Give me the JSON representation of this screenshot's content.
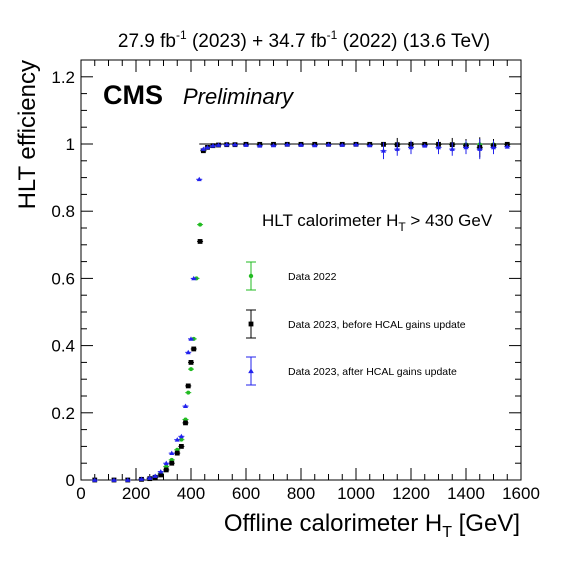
{
  "chart_data": {
    "type": "scatter",
    "lumi_label": {
      "part1": "27.9 fb",
      "sup1": "-1",
      "part2": " (2023) + 34.7 fb",
      "sup2": "-1",
      "part3": " (2022) (13.6 TeV)"
    },
    "cms_label": "CMS",
    "preliminary_label": "Preliminary",
    "cut_label": {
      "pre": "HLT calorimeter H",
      "sub": "T",
      "post": " > 430 GeV"
    },
    "xlabel": {
      "pre": "Offline calorimeter H",
      "sub": "T",
      "post": " [GeV]"
    },
    "ylabel": "HLT efficiency",
    "xlim": [
      0,
      1600
    ],
    "ylim": [
      0,
      1.25
    ],
    "x_ticks": [
      0,
      200,
      400,
      600,
      800,
      1000,
      1200,
      1400,
      1600
    ],
    "x_tick_labels": [
      "0",
      "200",
      "400",
      "600",
      "800",
      "1000",
      "1200",
      "1400",
      "1600"
    ],
    "y_ticks": [
      0,
      0.2,
      0.4,
      0.6,
      0.8,
      1.0,
      1.2
    ],
    "y_tick_labels": [
      "0",
      "0.2",
      "0.4",
      "0.6",
      "0.8",
      "1",
      "1.2"
    ],
    "reference_line_y": 1.0,
    "legend_position": "center-right",
    "series": [
      {
        "name": "Data 2022",
        "color": "#22bb22",
        "marker": "circle",
        "points": [
          [
            50,
            0.0
          ],
          [
            120,
            0.0
          ],
          [
            170,
            0.0
          ],
          [
            220,
            0.002
          ],
          [
            250,
            0.005
          ],
          [
            270,
            0.01
          ],
          [
            290,
            0.02
          ],
          [
            310,
            0.04
          ],
          [
            330,
            0.06
          ],
          [
            350,
            0.09
          ],
          [
            365,
            0.12
          ],
          [
            380,
            0.18
          ],
          [
            390,
            0.26
          ],
          [
            400,
            0.33
          ],
          [
            410,
            0.42
          ],
          [
            420,
            0.6
          ],
          [
            433,
            0.76
          ],
          [
            445,
            0.98
          ],
          [
            460,
            0.99
          ],
          [
            480,
            0.995
          ],
          [
            500,
            0.997
          ],
          [
            530,
            0.998
          ],
          [
            560,
            0.998
          ],
          [
            600,
            0.999
          ],
          [
            650,
            0.999
          ],
          [
            700,
            0.999
          ],
          [
            750,
            0.999
          ],
          [
            800,
            0.999
          ],
          [
            850,
            0.999
          ],
          [
            900,
            0.999
          ],
          [
            950,
            0.999
          ],
          [
            1000,
            0.999
          ],
          [
            1050,
            0.999
          ],
          [
            1100,
            0.999
          ],
          [
            1150,
            0.999
          ],
          [
            1200,
            0.999
          ],
          [
            1250,
            0.999
          ],
          [
            1300,
            0.999
          ],
          [
            1350,
            0.999
          ],
          [
            1400,
            0.999
          ],
          [
            1450,
            0.999
          ],
          [
            1500,
            0.999
          ],
          [
            1550,
            0.999
          ]
        ]
      },
      {
        "name": "Data 2023, before HCAL gains update",
        "color": "#000000",
        "marker": "square",
        "points": [
          [
            50,
            0.0
          ],
          [
            120,
            0.0
          ],
          [
            170,
            0.0
          ],
          [
            220,
            0.002
          ],
          [
            250,
            0.004
          ],
          [
            270,
            0.008
          ],
          [
            290,
            0.015
          ],
          [
            310,
            0.03
          ],
          [
            330,
            0.05
          ],
          [
            350,
            0.08
          ],
          [
            365,
            0.1
          ],
          [
            380,
            0.17
          ],
          [
            390,
            0.28
          ],
          [
            400,
            0.35
          ],
          [
            410,
            0.39
          ],
          [
            433,
            0.71
          ],
          [
            445,
            0.98
          ],
          [
            460,
            0.99
          ],
          [
            480,
            0.995
          ],
          [
            500,
            0.997
          ],
          [
            530,
            0.998
          ],
          [
            560,
            0.998
          ],
          [
            600,
            0.999
          ],
          [
            650,
            0.999
          ],
          [
            700,
            0.999
          ],
          [
            750,
            0.999
          ],
          [
            800,
            0.999
          ],
          [
            850,
            0.999
          ],
          [
            900,
            0.999
          ],
          [
            950,
            0.999
          ],
          [
            1000,
            0.999
          ],
          [
            1050,
            0.999
          ],
          [
            1100,
            0.999
          ],
          [
            1150,
            0.998
          ],
          [
            1200,
            0.999
          ],
          [
            1250,
            0.999
          ],
          [
            1300,
            0.999
          ],
          [
            1350,
            0.998
          ],
          [
            1400,
            0.995
          ],
          [
            1450,
            0.99
          ],
          [
            1500,
            0.995
          ],
          [
            1550,
            0.999
          ]
        ],
        "errors": [
          [
            1150,
            0.02
          ],
          [
            1300,
            0.015
          ],
          [
            1350,
            0.02
          ],
          [
            1400,
            0.02
          ],
          [
            1450,
            0.03
          ],
          [
            1500,
            0.02
          ]
        ]
      },
      {
        "name": "Data 2023, after HCAL gains update",
        "color": "#2222ee",
        "marker": "triangle",
        "points": [
          [
            50,
            0.0
          ],
          [
            120,
            0.0
          ],
          [
            170,
            0.0
          ],
          [
            220,
            0.003
          ],
          [
            250,
            0.006
          ],
          [
            270,
            0.012
          ],
          [
            290,
            0.025
          ],
          [
            310,
            0.05
          ],
          [
            330,
            0.08
          ],
          [
            350,
            0.12
          ],
          [
            365,
            0.13
          ],
          [
            380,
            0.22
          ],
          [
            390,
            0.38
          ],
          [
            400,
            0.42
          ],
          [
            410,
            0.6
          ],
          [
            430,
            0.895
          ],
          [
            445,
            0.985
          ],
          [
            460,
            0.99
          ],
          [
            480,
            0.995
          ],
          [
            500,
            0.997
          ],
          [
            530,
            0.998
          ],
          [
            560,
            0.998
          ],
          [
            600,
            0.997
          ],
          [
            650,
            0.995
          ],
          [
            700,
            0.996
          ],
          [
            750,
            0.998
          ],
          [
            800,
            0.997
          ],
          [
            850,
            0.996
          ],
          [
            900,
            0.998
          ],
          [
            950,
            0.997
          ],
          [
            1000,
            0.998
          ],
          [
            1050,
            0.996
          ],
          [
            1100,
            0.98
          ],
          [
            1150,
            0.985
          ],
          [
            1200,
            0.99
          ],
          [
            1250,
            0.995
          ],
          [
            1300,
            0.99
          ],
          [
            1350,
            0.985
          ],
          [
            1400,
            0.99
          ],
          [
            1450,
            0.985
          ],
          [
            1500,
            0.99
          ],
          [
            1550,
            0.992
          ]
        ],
        "errors": [
          [
            1100,
            0.025
          ],
          [
            1150,
            0.02
          ],
          [
            1200,
            0.02
          ],
          [
            1300,
            0.02
          ],
          [
            1350,
            0.02
          ],
          [
            1400,
            0.02
          ],
          [
            1450,
            0.03
          ],
          [
            1500,
            0.02
          ]
        ]
      }
    ]
  }
}
